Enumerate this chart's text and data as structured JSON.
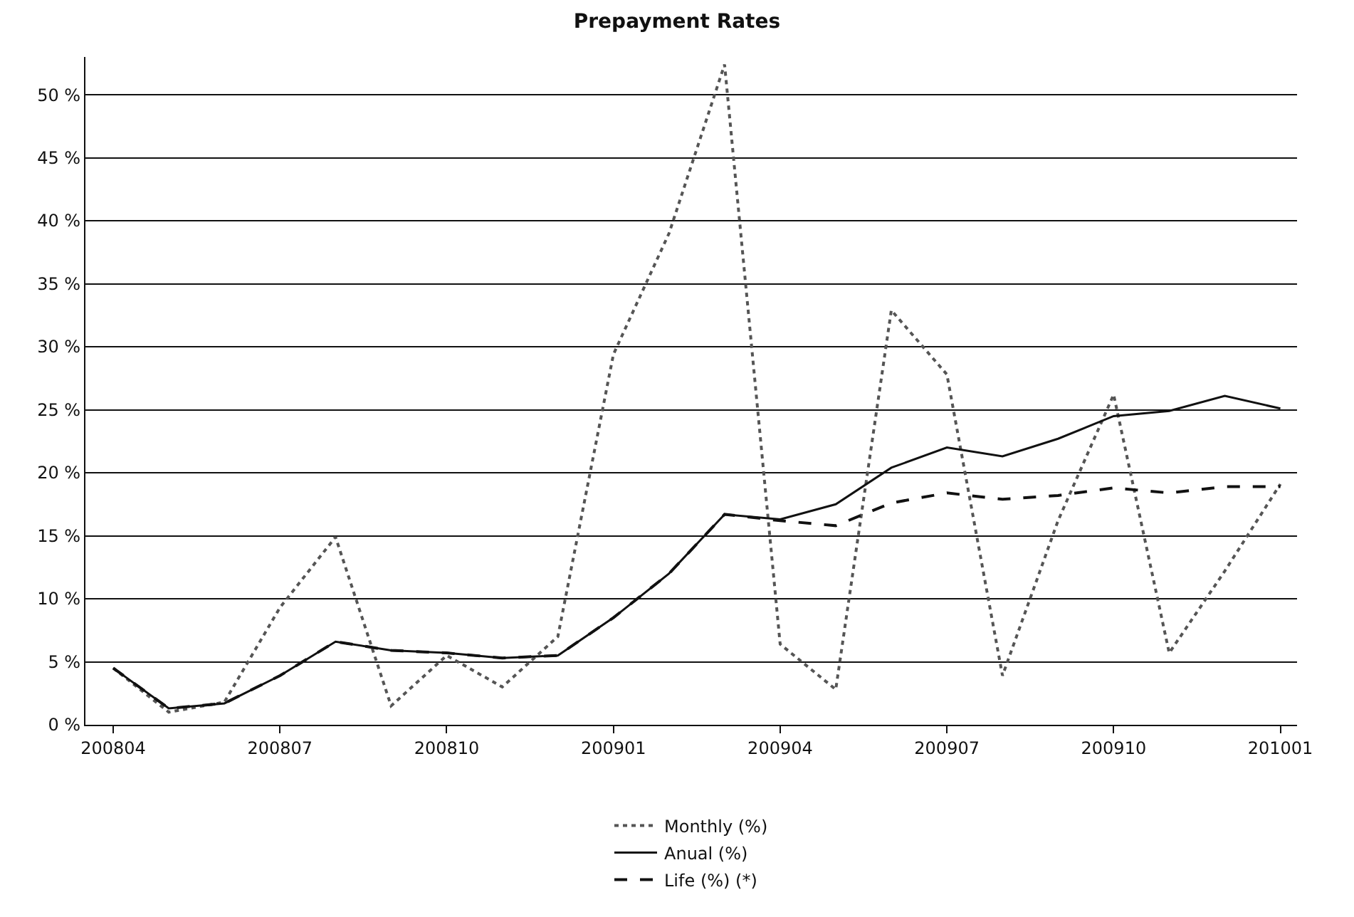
{
  "chart_data": {
    "type": "line",
    "title": "Prepayment Rates",
    "categories": [
      "200804",
      null,
      null,
      "200807",
      null,
      null,
      "200810",
      null,
      null,
      "200901",
      null,
      null,
      "200904",
      null,
      null,
      "200907",
      null,
      null,
      "200910",
      null,
      null,
      "201001"
    ],
    "series": [
      {
        "name": "Monthly (%)",
        "color": "#555555",
        "line_style": "dotted",
        "values": [
          4.5,
          1.0,
          1.8,
          9.3,
          14.9,
          1.5,
          5.5,
          3.0,
          7.0,
          29.4,
          39.0,
          52.4,
          6.4,
          2.8,
          32.9,
          27.8,
          3.9,
          16.2,
          26.2,
          5.7,
          12.2,
          19.1
        ]
      },
      {
        "name": "Anual (%)",
        "color": "#111111",
        "line_style": "solid",
        "values": [
          4.5,
          1.3,
          1.7,
          3.9,
          6.6,
          5.9,
          5.7,
          5.3,
          5.5,
          8.5,
          12.0,
          16.7,
          16.3,
          17.5,
          20.4,
          22.0,
          21.3,
          22.7,
          24.5,
          24.9,
          26.1,
          25.1
        ]
      },
      {
        "name": "Life (%) (*)",
        "color": "#111111",
        "line_style": "dashed",
        "values": [
          4.5,
          1.3,
          1.7,
          3.9,
          6.6,
          5.9,
          5.7,
          5.3,
          5.5,
          8.5,
          12.0,
          16.7,
          16.2,
          15.8,
          17.6,
          18.4,
          17.9,
          18.2,
          18.8,
          18.4,
          18.9,
          18.9
        ]
      }
    ],
    "ylim": [
      0,
      53
    ],
    "yticks": [
      {
        "value": 0,
        "label": "0 %"
      },
      {
        "value": 5,
        "label": "5 %"
      },
      {
        "value": 10,
        "label": "10 %"
      },
      {
        "value": 15,
        "label": "15 %"
      },
      {
        "value": 20,
        "label": "20 %"
      },
      {
        "value": 25,
        "label": "25 %"
      },
      {
        "value": 30,
        "label": "30 %"
      },
      {
        "value": 35,
        "label": "35 %"
      },
      {
        "value": 40,
        "label": "40 %"
      },
      {
        "value": 45,
        "label": "45 %"
      },
      {
        "value": 50,
        "label": "50 %"
      }
    ],
    "grid": "y",
    "legend": "bottom",
    "marker": "none"
  }
}
